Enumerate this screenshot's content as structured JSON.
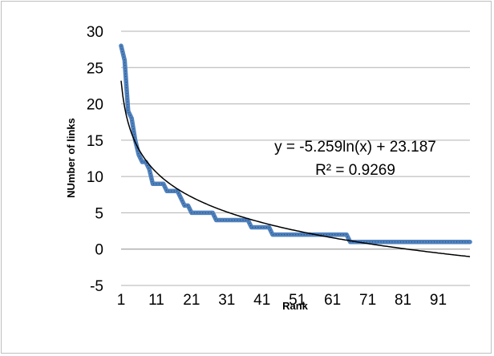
{
  "chart_data": {
    "type": "line",
    "title": "",
    "xlabel": "Rank",
    "ylabel": "NUmber of links",
    "xlim": [
      1,
      100
    ],
    "ylim": [
      -5,
      30
    ],
    "x_ticks": [
      1,
      11,
      21,
      31,
      41,
      51,
      61,
      71,
      81,
      91
    ],
    "y_ticks": [
      30,
      25,
      20,
      15,
      10,
      5,
      0,
      -5
    ],
    "grid": "horizontal",
    "legend": "none",
    "series": [
      {
        "color": "#4f81bd",
        "x": [
          1,
          2,
          3,
          4,
          5,
          6,
          7,
          8,
          9,
          10,
          11,
          12,
          13,
          14,
          15,
          16,
          17,
          18,
          19,
          20,
          21,
          22,
          23,
          24,
          25,
          26,
          27,
          28,
          29,
          30,
          31,
          32,
          33,
          34,
          35,
          36,
          37,
          38,
          39,
          40,
          41,
          42,
          43,
          44,
          45,
          46,
          47,
          48,
          49,
          50,
          51,
          52,
          53,
          54,
          55,
          56,
          57,
          58,
          59,
          60,
          61,
          62,
          63,
          64,
          65,
          66,
          67,
          68,
          69,
          70,
          71,
          72,
          73,
          74,
          75,
          76,
          77,
          78,
          79,
          80,
          81,
          82,
          83,
          84,
          85,
          86,
          87,
          88,
          89,
          90,
          91,
          92,
          93,
          94,
          95,
          96,
          97,
          98,
          99,
          100
        ],
        "values": [
          28,
          26,
          19,
          18,
          15,
          13,
          12,
          12,
          11,
          9,
          9,
          9,
          9,
          8,
          8,
          8,
          8,
          7,
          6,
          6,
          5,
          5,
          5,
          5,
          5,
          5,
          5,
          4,
          4,
          4,
          4,
          4,
          4,
          4,
          4,
          4,
          4,
          3,
          3,
          3,
          3,
          3,
          3,
          2,
          2,
          2,
          2,
          2,
          2,
          2,
          2,
          2,
          2,
          2,
          2,
          2,
          2,
          2,
          2,
          2,
          2,
          2,
          2,
          2,
          2,
          1,
          1,
          1,
          1,
          1,
          1,
          1,
          1,
          1,
          1,
          1,
          1,
          1,
          1,
          1,
          1,
          1,
          1,
          1,
          1,
          1,
          1,
          1,
          1,
          1,
          1,
          1,
          1,
          1,
          1,
          1,
          1,
          1,
          1,
          1
        ]
      }
    ],
    "trendline": {
      "type": "logarithmic",
      "color": "#000000",
      "a": -5.259,
      "b": 23.187,
      "equation": "y = -5.259ln(x) + 23.187",
      "r_squared": "R² = 0.9269"
    }
  }
}
